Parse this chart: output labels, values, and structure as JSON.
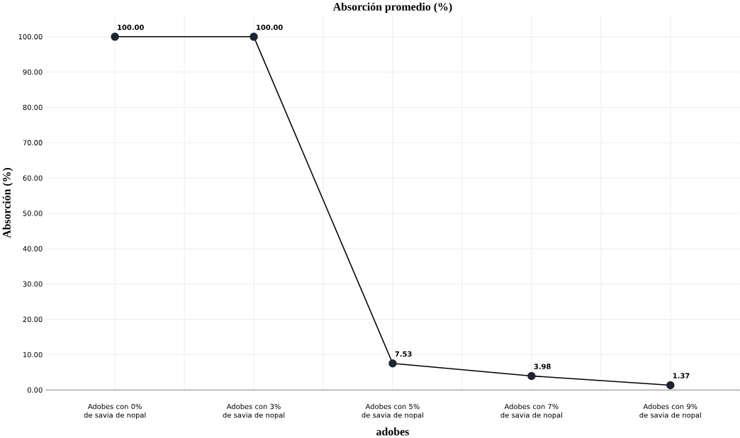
{
  "chart_data": {
    "type": "line",
    "title": "Absorción promedio (%)",
    "xlabel": "adobes",
    "ylabel": "Absorción (%)",
    "categories": [
      "Adobes con 0% de savia de nopal",
      "Adobes con 3% de savia de nopal",
      "Adobes con 5% de savia de nopal",
      "Adobes con 7% de savia de nopal",
      "Adobes con 9% de savia de nopal"
    ],
    "series": [
      {
        "color": "#1f2533",
        "values": [
          100,
          100,
          7.53,
          3.98,
          1.37
        ],
        "value_labels": [
          "100.00",
          "100.00",
          "7.53",
          "3.98",
          "1.37"
        ]
      }
    ],
    "ylim": [
      0,
      100
    ],
    "yticks": [
      {
        "value": 0,
        "label": "0.00"
      },
      {
        "value": 10,
        "label": "10.00"
      },
      {
        "value": 20,
        "label": "20.00"
      },
      {
        "value": 30,
        "label": "30.00"
      },
      {
        "value": 40,
        "label": "40.00"
      },
      {
        "value": 50,
        "label": "50.00"
      },
      {
        "value": 60,
        "label": "60.00"
      },
      {
        "value": 70,
        "label": "70.00"
      },
      {
        "value": 80,
        "label": "80.00"
      },
      {
        "value": 90,
        "label": "90.00"
      },
      {
        "value": 100,
        "label": "100.00"
      }
    ],
    "grid": true,
    "marker": "circle",
    "line_style": "solid"
  }
}
